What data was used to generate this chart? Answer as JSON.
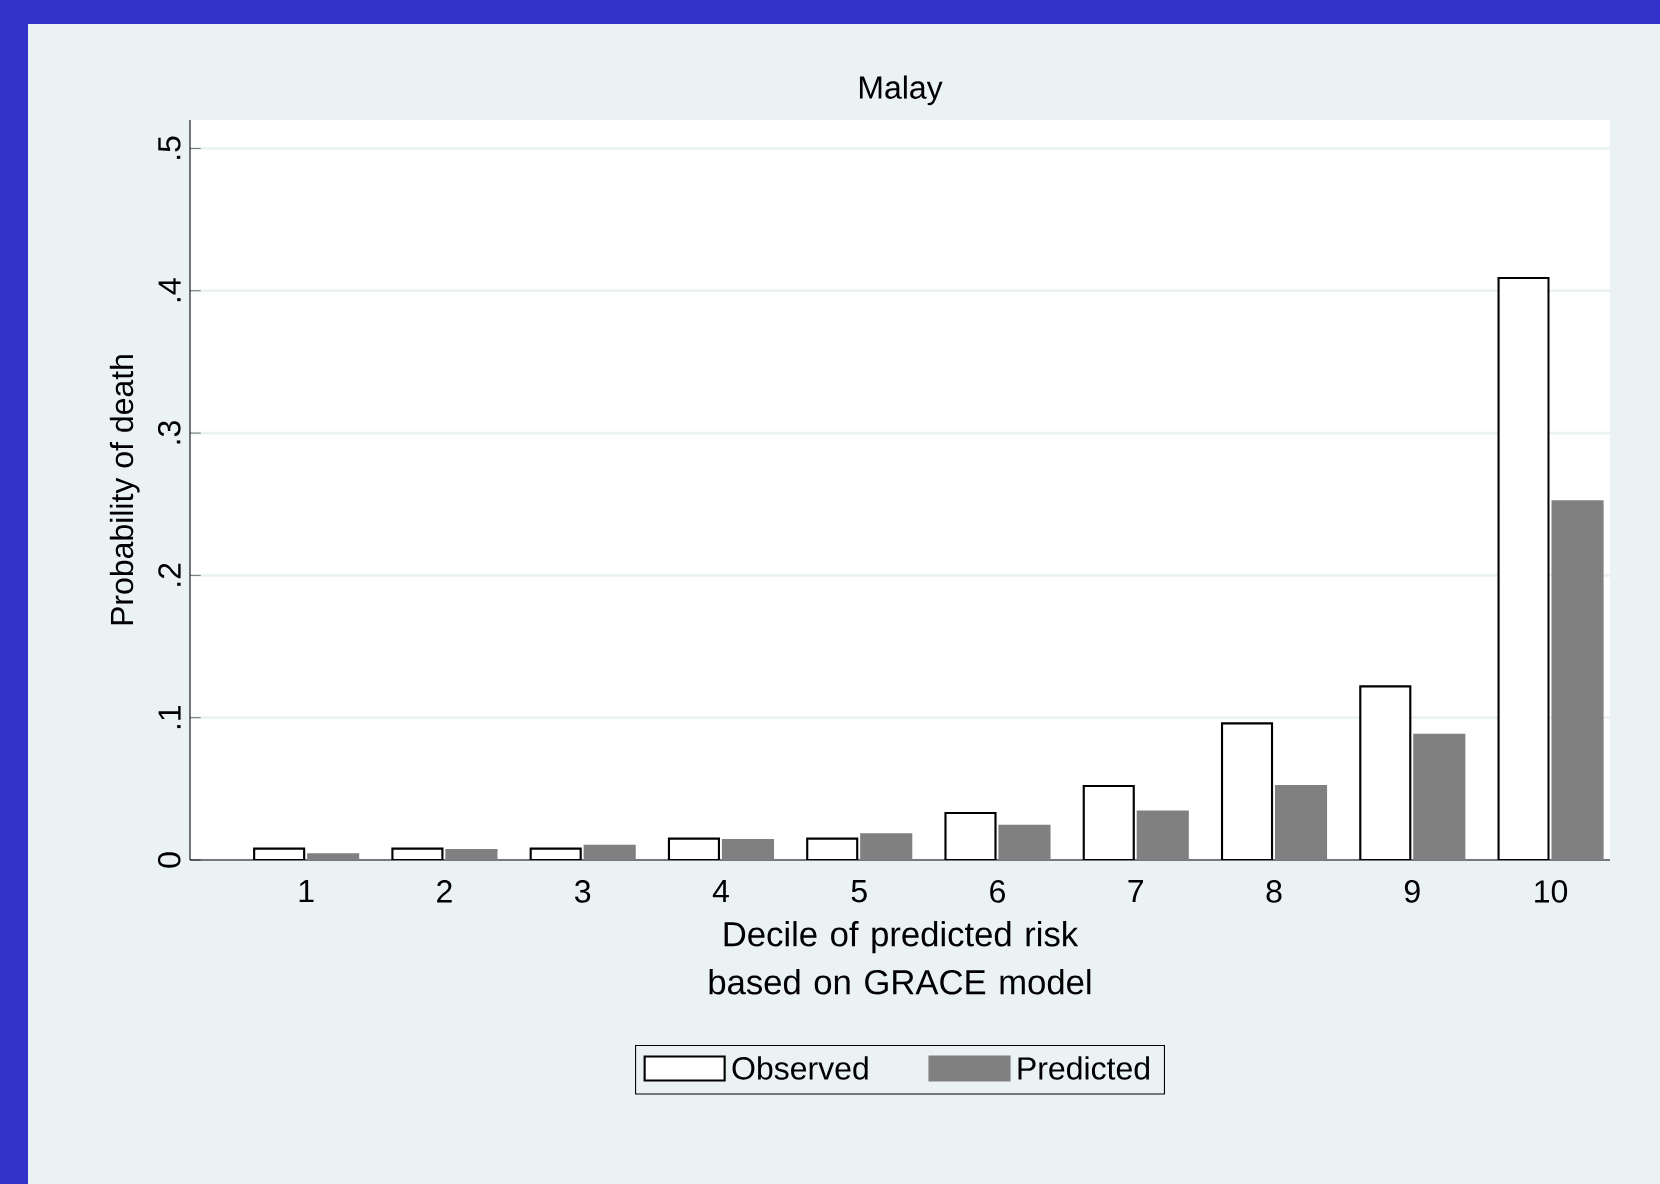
{
  "chart_data": {
    "type": "bar",
    "title": "Malay",
    "xlabel": "Decile of predicted risk based on GRACE model",
    "ylabel": "Probability of death",
    "categories": [
      "1",
      "2",
      "3",
      "4",
      "5",
      "6",
      "7",
      "8",
      "9",
      "10"
    ],
    "series": [
      {
        "name": "Observed",
        "color": "#ffffff",
        "values": [
          0.008,
          0.008,
          0.008,
          0.015,
          0.015,
          0.033,
          0.052,
          0.096,
          0.122,
          0.409
        ]
      },
      {
        "name": "Predicted",
        "color": "#808080",
        "values": [
          0.004,
          0.007,
          0.01,
          0.014,
          0.018,
          0.024,
          0.034,
          0.052,
          0.088,
          0.252
        ]
      }
    ],
    "ylim": [
      0,
      0.52
    ],
    "yticks": [
      {
        "value": 0,
        "label": "0"
      },
      {
        "value": 0.1,
        "label": ".1"
      },
      {
        "value": 0.2,
        "label": ".2"
      },
      {
        "value": 0.3,
        "label": ".3"
      },
      {
        "value": 0.4,
        "label": ".4"
      },
      {
        "value": 0.5,
        "label": ".5"
      }
    ],
    "grid": "y",
    "legend": "bottom"
  }
}
